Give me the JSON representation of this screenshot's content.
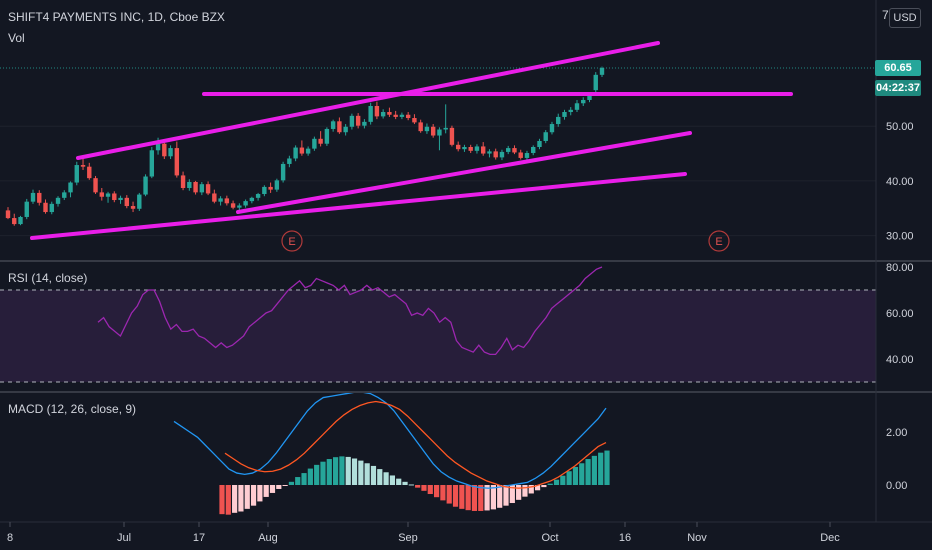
{
  "header": {
    "title": "SHIFT4 PAYMENTS INC, 1D, Cboe BZX",
    "vol_label": "Vol",
    "currency": "USD",
    "axis_top_partial": "7"
  },
  "price_badge": {
    "last": "60.65",
    "countdown": "04:22:37",
    "color": "#26a69a"
  },
  "colors": {
    "up": "#26a69a",
    "down": "#ef5350",
    "trendline": "#e91ee9",
    "background": "#131722",
    "rsi_line": "#9c27b0",
    "macd_line": "#2196f3",
    "signal_line": "#ff5722"
  },
  "x_axis": {
    "labels": [
      "8",
      "Jul",
      "17",
      "Aug",
      "Sep",
      "Oct",
      "16",
      "Nov",
      "Dec"
    ]
  },
  "chart_data": [
    {
      "type": "candlestick",
      "panel": "price",
      "title": "SHIFT4 PAYMENTS INC, 1D, Cboe BZX",
      "y_ticks": [
        "50.00",
        "40.00",
        "30.00"
      ],
      "ylim": [
        26,
        75
      ],
      "last_price": 60.65,
      "candles": [
        [
          34.6,
          35.2,
          33.0,
          33.2
        ],
        [
          33.2,
          34.0,
          31.8,
          32.1
        ],
        [
          32.1,
          33.6,
          31.9,
          33.4
        ],
        [
          33.4,
          36.7,
          33.0,
          36.2
        ],
        [
          36.2,
          38.4,
          35.8,
          37.8
        ],
        [
          37.8,
          38.3,
          35.5,
          36.0
        ],
        [
          36.0,
          36.6,
          34.0,
          34.3
        ],
        [
          34.3,
          36.2,
          33.9,
          35.8
        ],
        [
          35.8,
          37.2,
          35.3,
          36.9
        ],
        [
          36.9,
          38.3,
          36.5,
          37.9
        ],
        [
          37.9,
          39.9,
          37.0,
          39.7
        ],
        [
          39.7,
          43.5,
          39.2,
          42.9
        ],
        [
          42.9,
          44.6,
          42.0,
          42.6
        ],
        [
          42.6,
          43.3,
          40.2,
          40.5
        ],
        [
          40.5,
          40.9,
          37.6,
          37.9
        ],
        [
          37.9,
          38.7,
          36.4,
          37.1
        ],
        [
          37.1,
          38.0,
          36.0,
          37.7
        ],
        [
          37.7,
          38.1,
          36.1,
          36.5
        ],
        [
          36.5,
          37.3,
          35.8,
          36.9
        ],
        [
          36.9,
          37.4,
          35.0,
          35.4
        ],
        [
          35.4,
          36.2,
          34.3,
          34.9
        ],
        [
          34.9,
          37.8,
          34.5,
          37.5
        ],
        [
          37.5,
          41.2,
          37.2,
          40.8
        ],
        [
          40.8,
          46.2,
          40.5,
          45.6
        ],
        [
          45.6,
          47.9,
          44.8,
          46.8
        ],
        [
          46.8,
          47.3,
          44.0,
          44.5
        ],
        [
          44.5,
          46.5,
          44.0,
          46.0
        ],
        [
          46.0,
          47.2,
          40.6,
          41.0
        ],
        [
          41.0,
          41.7,
          38.3,
          38.7
        ],
        [
          38.7,
          40.3,
          38.2,
          39.8
        ],
        [
          39.8,
          40.0,
          37.5,
          37.9
        ],
        [
          37.9,
          39.8,
          37.4,
          39.4
        ],
        [
          39.4,
          39.9,
          37.4,
          37.7
        ],
        [
          37.7,
          38.4,
          35.9,
          36.2
        ],
        [
          36.2,
          37.2,
          35.5,
          36.8
        ],
        [
          36.8,
          37.3,
          35.5,
          35.9
        ],
        [
          35.9,
          36.4,
          34.8,
          35.1
        ],
        [
          35.1,
          35.9,
          34.3,
          35.5
        ],
        [
          35.5,
          36.6,
          35.1,
          36.3
        ],
        [
          36.3,
          37.1,
          35.9,
          36.9
        ],
        [
          36.9,
          37.8,
          36.4,
          37.6
        ],
        [
          37.6,
          39.2,
          37.2,
          38.9
        ],
        [
          38.9,
          39.7,
          37.8,
          38.4
        ],
        [
          38.4,
          40.4,
          38.0,
          40.1
        ],
        [
          40.1,
          43.5,
          39.7,
          43.1
        ],
        [
          43.1,
          44.6,
          42.5,
          44.1
        ],
        [
          44.1,
          46.5,
          43.6,
          46.1
        ],
        [
          46.1,
          47.4,
          44.6,
          45.0
        ],
        [
          45.0,
          46.3,
          44.6,
          45.9
        ],
        [
          45.9,
          48.1,
          45.5,
          47.7
        ],
        [
          47.7,
          49.1,
          46.3,
          46.8
        ],
        [
          46.8,
          49.8,
          46.4,
          49.5
        ],
        [
          49.5,
          51.2,
          49.0,
          50.9
        ],
        [
          50.9,
          51.6,
          48.6,
          48.9
        ],
        [
          48.9,
          50.4,
          48.3,
          49.9
        ],
        [
          49.9,
          52.3,
          49.4,
          51.9
        ],
        [
          51.9,
          52.4,
          49.6,
          50.1
        ],
        [
          50.1,
          51.3,
          49.6,
          50.8
        ],
        [
          50.8,
          54.3,
          50.3,
          53.7
        ],
        [
          53.7,
          54.5,
          51.3,
          51.8
        ],
        [
          51.8,
          53.1,
          51.4,
          52.6
        ],
        [
          52.6,
          53.4,
          51.7,
          52.1
        ],
        [
          52.1,
          52.8,
          51.3,
          51.7
        ],
        [
          51.7,
          52.5,
          51.3,
          52.1
        ],
        [
          52.1,
          52.6,
          51.1,
          51.5
        ],
        [
          51.5,
          52.2,
          50.4,
          50.7
        ],
        [
          50.7,
          51.2,
          48.8,
          49.1
        ],
        [
          49.1,
          50.5,
          48.6,
          49.9
        ],
        [
          49.9,
          50.4,
          47.9,
          48.3
        ],
        [
          48.3,
          49.8,
          45.6,
          49.4
        ],
        [
          49.4,
          54.0,
          48.7,
          49.7
        ],
        [
          49.7,
          50.1,
          46.3,
          46.6
        ],
        [
          46.6,
          47.2,
          45.4,
          45.8
        ],
        [
          45.8,
          46.6,
          45.3,
          46.2
        ],
        [
          46.2,
          46.6,
          45.1,
          45.5
        ],
        [
          45.5,
          46.7,
          45.0,
          46.3
        ],
        [
          46.3,
          47.1,
          44.6,
          45.0
        ],
        [
          45.0,
          45.8,
          44.3,
          45.4
        ],
        [
          45.4,
          45.9,
          43.9,
          44.3
        ],
        [
          44.3,
          45.7,
          43.8,
          45.3
        ],
        [
          45.3,
          46.4,
          44.9,
          46.0
        ],
        [
          46.0,
          46.5,
          44.9,
          45.2
        ],
        [
          45.2,
          45.7,
          43.9,
          44.2
        ],
        [
          44.2,
          45.5,
          43.8,
          45.1
        ],
        [
          45.1,
          46.5,
          44.7,
          46.2
        ],
        [
          46.2,
          47.7,
          45.8,
          47.3
        ],
        [
          47.3,
          49.3,
          46.9,
          48.9
        ],
        [
          48.9,
          50.8,
          48.5,
          50.4
        ],
        [
          50.4,
          52.3,
          49.9,
          51.7
        ],
        [
          51.7,
          53.0,
          51.2,
          52.6
        ],
        [
          52.6,
          53.5,
          52.0,
          53.0
        ],
        [
          53.0,
          54.8,
          52.6,
          54.2
        ],
        [
          54.2,
          55.3,
          53.7,
          54.8
        ],
        [
          54.8,
          56.1,
          54.4,
          55.6
        ],
        [
          56.6,
          59.9,
          56.1,
          59.4
        ],
        [
          59.4,
          60.9,
          59.0,
          60.65
        ]
      ],
      "trendlines": [
        {
          "from": [
            "Jun 17",
            44.7
          ],
          "to": [
            "Oct 21",
            65.1
          ]
        },
        {
          "from": [
            "Jul 19",
            55.1
          ],
          "to": [
            "Nov 11",
            55.1
          ]
        },
        {
          "from": [
            "Jul 20",
            34.0
          ],
          "to": [
            "Oct 23",
            49.2
          ]
        },
        {
          "from": [
            "Jun 10",
            30.0
          ],
          "to": [
            "Oct 22",
            41.5
          ]
        }
      ],
      "events": [
        "E",
        "E"
      ]
    },
    {
      "type": "line",
      "panel": "rsi",
      "title": "RSI (14, close)",
      "y_ticks": [
        "80.00",
        "60.00",
        "40.00"
      ],
      "ylim": [
        30,
        80
      ],
      "bands": [
        70,
        30
      ],
      "series": [
        {
          "values": [
            56,
            58,
            54,
            52,
            50,
            55,
            60,
            63,
            68,
            70,
            70,
            65,
            58,
            53,
            55,
            52,
            52,
            53,
            50,
            49,
            47,
            45,
            47,
            45,
            46,
            48,
            50,
            54,
            56,
            58,
            60,
            61,
            64,
            67,
            70,
            72,
            74,
            71,
            72,
            75,
            74,
            73,
            72,
            70,
            72,
            68,
            69,
            70,
            72,
            70,
            71,
            69,
            67,
            68,
            66,
            64,
            59,
            60,
            59,
            62,
            60,
            56,
            58,
            56,
            48,
            45,
            44,
            43,
            46,
            43,
            42,
            42,
            45,
            49,
            44,
            46,
            45,
            48,
            52,
            55,
            58,
            62,
            64,
            66,
            68,
            70,
            72,
            75,
            77,
            79,
            80
          ]
        }
      ]
    },
    {
      "type": "bar+line",
      "panel": "macd",
      "title": "MACD (12, 26, close, 9)",
      "y_ticks": [
        "2.00",
        "0.00"
      ],
      "ylim": [
        -1.0,
        3.6
      ],
      "histogram": [
        -1.1,
        -1.12,
        -1.05,
        -1.0,
        -0.9,
        -0.78,
        -0.62,
        -0.45,
        -0.3,
        -0.15,
        -0.02,
        0.12,
        0.3,
        0.45,
        0.62,
        0.76,
        0.88,
        0.98,
        1.05,
        1.08,
        1.06,
        1.0,
        0.92,
        0.82,
        0.72,
        0.6,
        0.48,
        0.36,
        0.24,
        0.12,
        0.02,
        -0.1,
        -0.22,
        -0.34,
        -0.46,
        -0.58,
        -0.7,
        -0.82,
        -0.9,
        -0.95,
        -0.98,
        -0.98,
        -0.96,
        -0.92,
        -0.86,
        -0.78,
        -0.68,
        -0.56,
        -0.44,
        -0.32,
        -0.2,
        -0.08,
        0.05,
        0.2,
        0.35,
        0.52,
        0.68,
        0.82,
        0.98,
        1.1,
        1.22,
        1.3
      ],
      "series": [
        {
          "values": [
            2.4,
            2.2,
            2.0,
            1.8,
            1.5,
            1.2,
            0.9,
            0.6,
            0.45,
            0.4,
            0.45,
            0.6,
            0.85,
            1.2,
            1.6,
            2.0,
            2.4,
            2.8,
            3.1,
            3.3,
            3.35,
            3.4,
            3.45,
            3.5,
            3.5,
            3.45,
            3.3,
            3.1,
            2.8,
            2.4,
            2.0,
            1.6,
            1.2,
            0.8,
            0.5,
            0.3,
            0.15,
            0.05,
            -0.05,
            -0.1,
            -0.12,
            -0.1,
            -0.05,
            0.0,
            0.05,
            0.1,
            0.25,
            0.45,
            0.7,
            1.0,
            1.3,
            1.6,
            1.9,
            2.2,
            2.5,
            2.9
          ]
        },
        {
          "values": [
            1.2,
            1.0,
            0.8,
            0.65,
            0.55,
            0.5,
            0.52,
            0.6,
            0.75,
            0.95,
            1.2,
            1.5,
            1.8,
            2.1,
            2.4,
            2.65,
            2.85,
            3.0,
            3.1,
            3.15,
            3.1,
            3.0,
            2.85,
            2.6,
            2.3,
            2.0,
            1.7,
            1.4,
            1.1,
            0.85,
            0.65,
            0.45,
            0.3,
            0.15,
            0.05,
            -0.05,
            -0.1,
            -0.12,
            -0.1,
            -0.05,
            0.05,
            0.15,
            0.3,
            0.5,
            0.7,
            0.95,
            1.2,
            1.45,
            1.6
          ]
        }
      ]
    }
  ]
}
